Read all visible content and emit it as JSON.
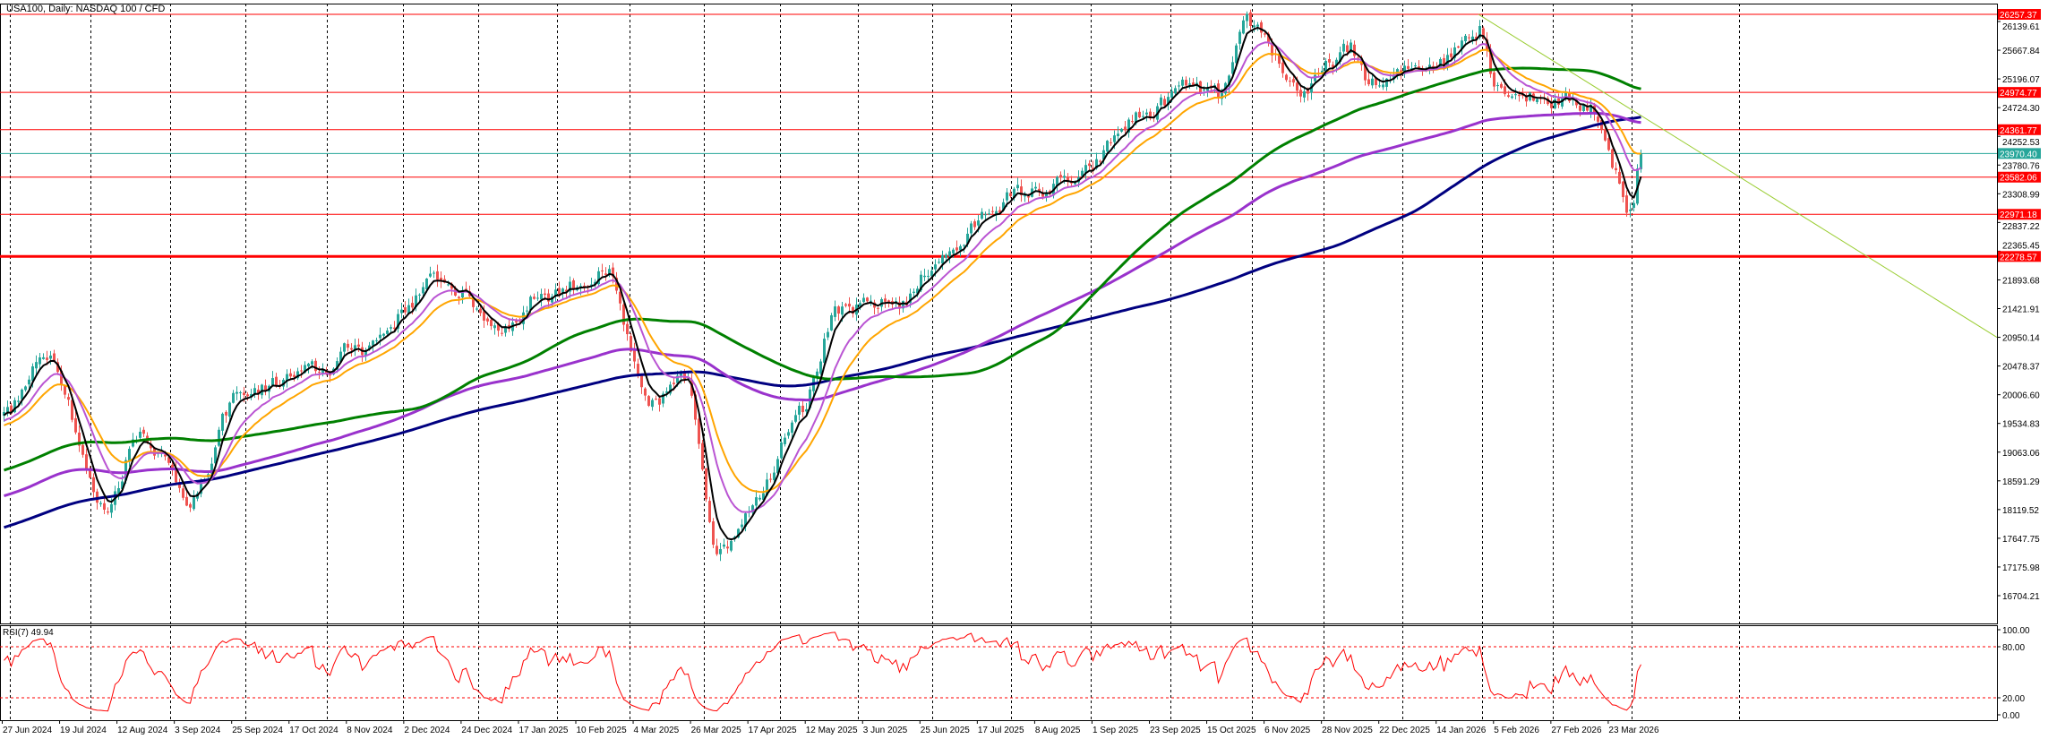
{
  "header": {
    "title": "USA100, Daily:  NASDAQ 100 / CFD"
  },
  "rsi": {
    "label": "RSI(7) 49.94",
    "period": 7,
    "levels": [
      20,
      80
    ],
    "ticks": [
      "100.00",
      "80.00",
      "20.00",
      "0.00"
    ]
  },
  "colors": {
    "bull": "#26a69a",
    "bear": "#ef5350",
    "level_line": "#ff0000",
    "current_price": "#26a69a",
    "trendline": "#9acd32",
    "ema_fast": "#000000",
    "ema_mid": "#ba55d3",
    "ema_slow": "#ffa500",
    "ma_green": "#008000",
    "ma_purple": "#9932cc",
    "ma_navy": "#000080",
    "rsi_line": "#ff0000"
  },
  "chart_data": {
    "type": "candlestick",
    "symbol": "USA100",
    "timeframe": "Daily",
    "price_axis_ticks": [
      "26139.61",
      "25667.84",
      "25196.07",
      "24724.30",
      "24252.53",
      "23780.76",
      "23308.99",
      "22837.22",
      "22365.45",
      "21893.68",
      "21421.91",
      "20950.14",
      "20478.37",
      "20006.60",
      "19534.83",
      "19063.06",
      "18591.29",
      "18119.52",
      "17647.75",
      "17175.98",
      "16704.21"
    ],
    "price_range": [
      16450,
      26400
    ],
    "date_labels": [
      "27 Jun 2024",
      "19 Jul 2024",
      "12 Aug 2024",
      "3 Sep 2024",
      "25 Sep 2024",
      "17 Oct 2024",
      "8 Nov 2024",
      "2 Dec 2024",
      "24 Dec 2024",
      "17 Jan 2025",
      "10 Feb 2025",
      "4 Mar 2025",
      "26 Mar 2025",
      "17 Apr 2025",
      "12 May 2025",
      "3 Jun 2025",
      "25 Jun 2025",
      "17 Jul 2025",
      "8 Aug 2025",
      "1 Sep 2025",
      "23 Sep 2025",
      "15 Oct 2025",
      "6 Nov 2025",
      "28 Nov 2025",
      "22 Dec 2025",
      "14 Jan 2026",
      "5 Feb 2026",
      "27 Feb 2026",
      "23 Mar 2026"
    ],
    "horizontal_levels": [
      {
        "price": 26257.37,
        "label": "26257.37",
        "type": "level"
      },
      {
        "price": 24974.77,
        "label": "24974.77",
        "type": "level"
      },
      {
        "price": 24361.77,
        "label": "24361.77",
        "type": "level"
      },
      {
        "price": 23970.4,
        "label": "23970.40",
        "type": "current"
      },
      {
        "price": 23582.06,
        "label": "23582.06",
        "type": "level"
      },
      {
        "price": 22971.18,
        "label": "22971.18",
        "type": "level"
      },
      {
        "price": 22278.57,
        "label": "22278.57",
        "type": "level-major"
      }
    ],
    "trendline": {
      "from": [
        412,
        26257
      ],
      "to": [
        557,
        20950
      ]
    },
    "close_anchors": [
      [
        0,
        19722
      ],
      [
        13,
        20650
      ],
      [
        28,
        18117
      ],
      [
        38,
        19398
      ],
      [
        53,
        18322
      ],
      [
        66,
        20046
      ],
      [
        88,
        20369
      ],
      [
        99,
        20796
      ],
      [
        122,
        21870
      ],
      [
        140,
        21120
      ],
      [
        150,
        21664
      ],
      [
        168,
        21974
      ],
      [
        180,
        19825
      ],
      [
        190,
        20266
      ],
      [
        200,
        17470
      ],
      [
        210,
        18322
      ],
      [
        222,
        19825
      ],
      [
        233,
        21340
      ],
      [
        251,
        21546
      ],
      [
        262,
        22297
      ],
      [
        281,
        23268
      ],
      [
        299,
        23490
      ],
      [
        317,
        24565
      ],
      [
        332,
        25094
      ],
      [
        339,
        24874
      ],
      [
        348,
        26066
      ],
      [
        363,
        24992
      ],
      [
        375,
        25640
      ],
      [
        383,
        25094
      ],
      [
        401,
        25522
      ],
      [
        412,
        26066
      ],
      [
        417,
        25094
      ],
      [
        430,
        24874
      ],
      [
        443,
        24770
      ],
      [
        450,
        23696
      ],
      [
        454,
        23048
      ],
      [
        457,
        23970
      ]
    ]
  }
}
